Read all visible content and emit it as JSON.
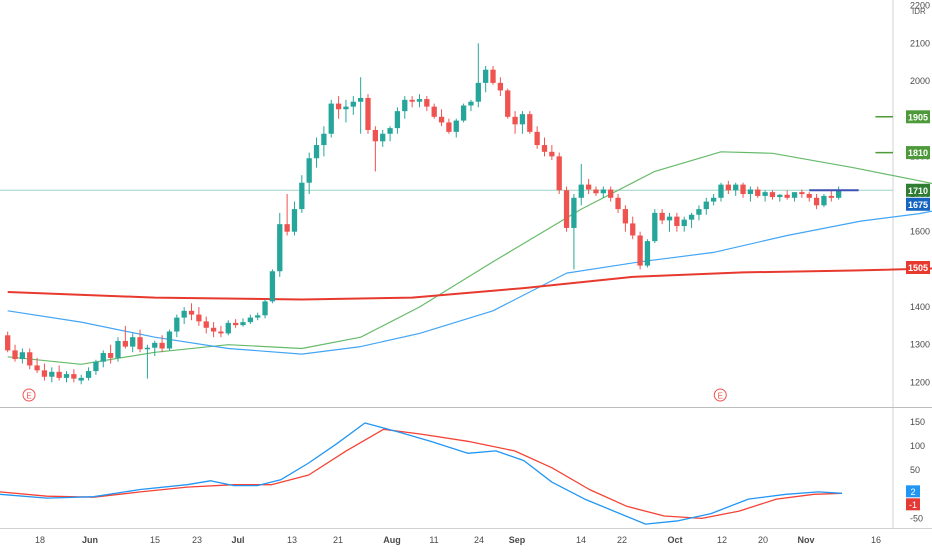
{
  "chart_data": {
    "type": "candlestick",
    "currency": "IDR",
    "grid": false,
    "price_panel": {
      "y_ticks": [
        1200,
        1300,
        1400,
        1500,
        1600,
        1700,
        1800,
        1900,
        2000,
        2100,
        2200
      ],
      "ylim": [
        1140,
        2215
      ],
      "candles": [
        [
          1325,
          1335,
          1280,
          1285
        ],
        [
          1285,
          1300,
          1255,
          1262
        ],
        [
          1262,
          1290,
          1250,
          1280
        ],
        [
          1280,
          1290,
          1235,
          1245
        ],
        [
          1245,
          1265,
          1225,
          1232
        ],
        [
          1232,
          1250,
          1205,
          1215
        ],
        [
          1215,
          1240,
          1200,
          1228
        ],
        [
          1228,
          1245,
          1205,
          1212
        ],
        [
          1212,
          1230,
          1200,
          1222
        ],
        [
          1222,
          1235,
          1200,
          1210
        ],
        [
          1205,
          1220,
          1195,
          1212
        ],
        [
          1212,
          1240,
          1205,
          1230
        ],
        [
          1230,
          1260,
          1220,
          1255
        ],
        [
          1255,
          1285,
          1240,
          1278
        ],
        [
          1278,
          1300,
          1250,
          1265
        ],
        [
          1265,
          1320,
          1255,
          1310
        ],
        [
          1310,
          1350,
          1290,
          1295
        ],
        [
          1295,
          1330,
          1280,
          1320
        ],
        [
          1320,
          1340,
          1280,
          1288
        ],
        [
          1288,
          1300,
          1210,
          1292
        ],
        [
          1292,
          1310,
          1270,
          1305
        ],
        [
          1305,
          1325,
          1280,
          1290
        ],
        [
          1290,
          1340,
          1285,
          1335
        ],
        [
          1335,
          1380,
          1320,
          1372
        ],
        [
          1372,
          1400,
          1355,
          1390
        ],
        [
          1390,
          1410,
          1365,
          1380
        ],
        [
          1380,
          1400,
          1350,
          1362
        ],
        [
          1362,
          1375,
          1330,
          1345
        ],
        [
          1345,
          1360,
          1320,
          1335
        ],
        [
          1335,
          1350,
          1320,
          1330
        ],
        [
          1330,
          1365,
          1325,
          1358
        ],
        [
          1358,
          1368,
          1345,
          1352
        ],
        [
          1352,
          1370,
          1348,
          1360
        ],
        [
          1360,
          1380,
          1355,
          1372
        ],
        [
          1372,
          1385,
          1365,
          1378
        ],
        [
          1378,
          1420,
          1370,
          1415
        ],
        [
          1415,
          1500,
          1410,
          1495
        ],
        [
          1495,
          1650,
          1480,
          1620
        ],
        [
          1620,
          1700,
          1590,
          1600
        ],
        [
          1600,
          1680,
          1590,
          1660
        ],
        [
          1660,
          1750,
          1650,
          1730
        ],
        [
          1730,
          1810,
          1700,
          1795
        ],
        [
          1795,
          1850,
          1770,
          1830
        ],
        [
          1830,
          1880,
          1800,
          1860
        ],
        [
          1860,
          1950,
          1850,
          1940
        ],
        [
          1940,
          1960,
          1900,
          1925
        ],
        [
          1925,
          1950,
          1890,
          1932
        ],
        [
          1932,
          1960,
          1910,
          1945
        ],
        [
          1945,
          2010,
          1860,
          1955
        ],
        [
          1955,
          1965,
          1860,
          1870
        ],
        [
          1870,
          1880,
          1760,
          1840
        ],
        [
          1840,
          1870,
          1825,
          1860
        ],
        [
          1860,
          1880,
          1840,
          1875
        ],
        [
          1875,
          1930,
          1860,
          1920
        ],
        [
          1920,
          1960,
          1900,
          1950
        ],
        [
          1950,
          1960,
          1930,
          1945
        ],
        [
          1945,
          1965,
          1930,
          1952
        ],
        [
          1952,
          1960,
          1920,
          1932
        ],
        [
          1932,
          1940,
          1900,
          1905
        ],
        [
          1905,
          1925,
          1880,
          1890
        ],
        [
          1890,
          1900,
          1860,
          1865
        ],
        [
          1865,
          1900,
          1850,
          1895
        ],
        [
          1895,
          1940,
          1890,
          1935
        ],
        [
          1935,
          1950,
          1920,
          1945
        ],
        [
          1945,
          2100,
          1930,
          1995
        ],
        [
          1995,
          2040,
          1970,
          2030
        ],
        [
          2030,
          2040,
          1990,
          1995
        ],
        [
          1995,
          2010,
          1960,
          1975
        ],
        [
          1975,
          1980,
          1900,
          1905
        ],
        [
          1905,
          1920,
          1860,
          1885
        ],
        [
          1885,
          1920,
          1860,
          1912
        ],
        [
          1912,
          1920,
          1860,
          1865
        ],
        [
          1865,
          1880,
          1820,
          1830
        ],
        [
          1830,
          1850,
          1800,
          1812
        ],
        [
          1812,
          1830,
          1790,
          1800
        ],
        [
          1800,
          1810,
          1700,
          1710
        ],
        [
          1710,
          1720,
          1600,
          1610
        ],
        [
          1610,
          1700,
          1500,
          1690
        ],
        [
          1690,
          1780,
          1670,
          1725
        ],
        [
          1725,
          1740,
          1700,
          1712
        ],
        [
          1712,
          1720,
          1695,
          1702
        ],
        [
          1702,
          1720,
          1690,
          1712
        ],
        [
          1712,
          1720,
          1680,
          1690
        ],
        [
          1690,
          1700,
          1650,
          1660
        ],
        [
          1660,
          1670,
          1600,
          1622
        ],
        [
          1622,
          1640,
          1580,
          1590
        ],
        [
          1590,
          1600,
          1500,
          1510
        ],
        [
          1510,
          1580,
          1505,
          1575
        ],
        [
          1575,
          1660,
          1570,
          1650
        ],
        [
          1650,
          1660,
          1620,
          1630
        ],
        [
          1630,
          1650,
          1600,
          1640
        ],
        [
          1640,
          1650,
          1600,
          1615
        ],
        [
          1615,
          1640,
          1600,
          1632
        ],
        [
          1632,
          1650,
          1610,
          1645
        ],
        [
          1645,
          1670,
          1630,
          1660
        ],
        [
          1660,
          1690,
          1645,
          1680
        ],
        [
          1680,
          1700,
          1670,
          1690
        ],
        [
          1690,
          1730,
          1680,
          1725
        ],
        [
          1725,
          1735,
          1700,
          1710
        ],
        [
          1710,
          1730,
          1695,
          1725
        ],
        [
          1725,
          1730,
          1690,
          1700
        ],
        [
          1700,
          1720,
          1680,
          1712
        ],
        [
          1712,
          1720,
          1690,
          1695
        ],
        [
          1695,
          1710,
          1680,
          1705
        ],
        [
          1705,
          1710,
          1685,
          1692
        ],
        [
          1692,
          1700,
          1680,
          1698
        ],
        [
          1698,
          1710,
          1685,
          1690
        ],
        [
          1690,
          1700,
          1680,
          1705
        ],
        [
          1705,
          1712,
          1690,
          1700
        ],
        [
          1700,
          1705,
          1680,
          1690
        ],
        [
          1690,
          1700,
          1660,
          1670
        ],
        [
          1670,
          1700,
          1665,
          1695
        ],
        [
          1695,
          1710,
          1680,
          1690
        ],
        [
          1690,
          1720,
          1685,
          1710
        ]
      ],
      "sma_red_from_index": 0,
      "sma_red": [
        {
          "i": 0,
          "v": 1440
        },
        {
          "i": 20,
          "v": 1425
        },
        {
          "i": 40,
          "v": 1420
        },
        {
          "i": 55,
          "v": 1425
        },
        {
          "i": 70,
          "v": 1450
        },
        {
          "i": 85,
          "v": 1480
        },
        {
          "i": 100,
          "v": 1492
        },
        {
          "i": 115,
          "v": 1497
        },
        {
          "i": 131,
          "v": 1505
        }
      ],
      "sma_green": [
        {
          "i": 0,
          "v": 1268
        },
        {
          "i": 10,
          "v": 1248
        },
        {
          "i": 20,
          "v": 1280
        },
        {
          "i": 30,
          "v": 1300
        },
        {
          "i": 40,
          "v": 1290
        },
        {
          "i": 48,
          "v": 1320
        },
        {
          "i": 56,
          "v": 1400
        },
        {
          "i": 66,
          "v": 1520
        },
        {
          "i": 78,
          "v": 1660
        },
        {
          "i": 88,
          "v": 1760
        },
        {
          "i": 97,
          "v": 1812
        },
        {
          "i": 104,
          "v": 1808
        },
        {
          "i": 115,
          "v": 1770
        },
        {
          "i": 124,
          "v": 1735
        },
        {
          "i": 131,
          "v": 1705
        }
      ],
      "sma_blue": [
        {
          "i": 0,
          "v": 1390
        },
        {
          "i": 10,
          "v": 1360
        },
        {
          "i": 20,
          "v": 1320
        },
        {
          "i": 30,
          "v": 1290
        },
        {
          "i": 40,
          "v": 1275
        },
        {
          "i": 48,
          "v": 1295
        },
        {
          "i": 56,
          "v": 1330
        },
        {
          "i": 66,
          "v": 1390
        },
        {
          "i": 76,
          "v": 1490
        },
        {
          "i": 86,
          "v": 1520
        },
        {
          "i": 96,
          "v": 1545
        },
        {
          "i": 106,
          "v": 1590
        },
        {
          "i": 116,
          "v": 1628
        },
        {
          "i": 124,
          "v": 1648
        },
        {
          "i": 131,
          "v": 1675
        }
      ],
      "horizontal_levels": [
        {
          "value": 1905,
          "label": "1905",
          "color": "#4e9a3a",
          "line_start_index": 118
        },
        {
          "value": 1810,
          "label": "1810",
          "color": "#4e9a3a",
          "line_start_index": 118
        },
        {
          "value": 1505,
          "label": "1505",
          "color": "#e8392f",
          "line_start_index": null
        }
      ],
      "current_price": {
        "value": 1710,
        "label": "1710",
        "color": "#2e7d32"
      },
      "blue_last": {
        "value": 1675,
        "label": "1675",
        "color": "#1565c0"
      },
      "event_markers": [
        {
          "label": "E",
          "index": 1
        },
        {
          "label": "E",
          "index": 95
        }
      ]
    },
    "macd_panel": {
      "y_ticks": [
        150,
        100,
        50,
        -50
      ],
      "ylim": [
        -70,
        175
      ],
      "macd": [
        {
          "i": 0,
          "v": 0
        },
        {
          "i": 10,
          "v": -8
        },
        {
          "i": 20,
          "v": -5
        },
        {
          "i": 30,
          "v": 10
        },
        {
          "i": 40,
          "v": 20
        },
        {
          "i": 45,
          "v": 28
        },
        {
          "i": 50,
          "v": 18
        },
        {
          "i": 55,
          "v": 18
        },
        {
          "i": 60,
          "v": 30
        },
        {
          "i": 66,
          "v": 65
        },
        {
          "i": 72,
          "v": 105
        },
        {
          "i": 78,
          "v": 148
        },
        {
          "i": 85,
          "v": 130
        },
        {
          "i": 92,
          "v": 110
        },
        {
          "i": 100,
          "v": 85
        },
        {
          "i": 106,
          "v": 90
        },
        {
          "i": 112,
          "v": 70
        },
        {
          "i": 118,
          "v": 25
        },
        {
          "i": 125,
          "v": -10
        },
        {
          "i": 132,
          "v": -38
        },
        {
          "i": 138,
          "v": -62
        },
        {
          "i": 145,
          "v": -55
        },
        {
          "i": 152,
          "v": -40
        },
        {
          "i": 160,
          "v": -10
        },
        {
          "i": 168,
          "v": 0
        },
        {
          "i": 175,
          "v": 5
        },
        {
          "i": 180,
          "v": 2
        }
      ],
      "signal": [
        {
          "i": 0,
          "v": 5
        },
        {
          "i": 10,
          "v": -4
        },
        {
          "i": 20,
          "v": -6
        },
        {
          "i": 30,
          "v": 5
        },
        {
          "i": 40,
          "v": 15
        },
        {
          "i": 50,
          "v": 20
        },
        {
          "i": 58,
          "v": 20
        },
        {
          "i": 66,
          "v": 40
        },
        {
          "i": 74,
          "v": 90
        },
        {
          "i": 82,
          "v": 135
        },
        {
          "i": 90,
          "v": 125
        },
        {
          "i": 100,
          "v": 110
        },
        {
          "i": 110,
          "v": 90
        },
        {
          "i": 118,
          "v": 55
        },
        {
          "i": 126,
          "v": 10
        },
        {
          "i": 134,
          "v": -25
        },
        {
          "i": 142,
          "v": -45
        },
        {
          "i": 150,
          "v": -50
        },
        {
          "i": 158,
          "v": -35
        },
        {
          "i": 166,
          "v": -10
        },
        {
          "i": 174,
          "v": 0
        },
        {
          "i": 180,
          "v": 2
        }
      ],
      "last_values": [
        {
          "label": "2",
          "color": "#2196f3"
        },
        {
          "label": "-1",
          "color": "#e53935"
        }
      ]
    },
    "x_ticks": [
      {
        "label": "18",
        "bold": false
      },
      {
        "label": "Jun",
        "bold": true
      },
      {
        "label": "15",
        "bold": false
      },
      {
        "label": "23",
        "bold": false
      },
      {
        "label": "Jul",
        "bold": true
      },
      {
        "label": "13",
        "bold": false
      },
      {
        "label": "21",
        "bold": false
      },
      {
        "label": "Aug",
        "bold": true
      },
      {
        "label": "11",
        "bold": false
      },
      {
        "label": "24",
        "bold": false
      },
      {
        "label": "Sep",
        "bold": true
      },
      {
        "label": "14",
        "bold": false
      },
      {
        "label": "22",
        "bold": false
      },
      {
        "label": "Oct",
        "bold": true
      },
      {
        "label": "12",
        "bold": false
      },
      {
        "label": "20",
        "bold": false
      },
      {
        "label": "Nov",
        "bold": true
      },
      {
        "label": "16",
        "bold": false
      }
    ]
  },
  "colors": {
    "up": "#26a69a",
    "down": "#ef5350",
    "sma_red": "#e8392f",
    "sma_green": "#66bb6a",
    "sma_blue": "#42a5f5",
    "macd": "#2196f3",
    "signal": "#f44336",
    "crosshair": "#9fd3c7",
    "trend": "#3f51b5"
  }
}
